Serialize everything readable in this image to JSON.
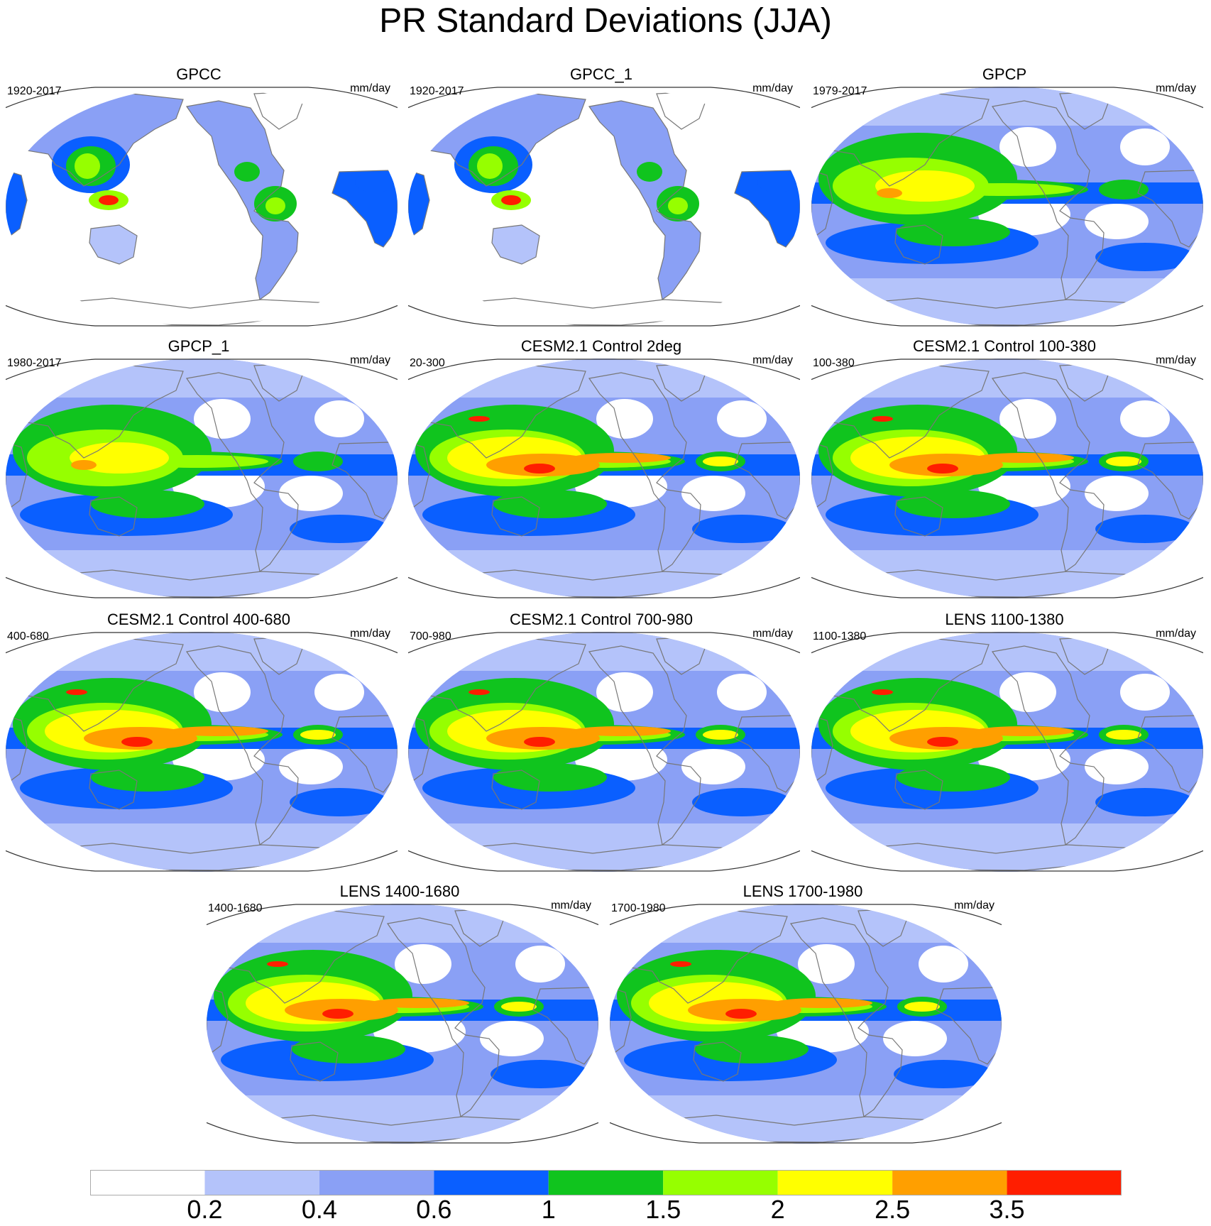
{
  "title": "PR Standard Deviations (JJA)",
  "units": "mm/day",
  "panels": [
    {
      "title": "GPCC",
      "period": "1920-2017",
      "kind": "obs_land"
    },
    {
      "title": "GPCC_1",
      "period": "1920-2017",
      "kind": "obs_land"
    },
    {
      "title": "GPCP",
      "period": "1979-2017",
      "kind": "obs_global"
    },
    {
      "title": "GPCP_1",
      "period": "1980-2017",
      "kind": "obs_global"
    },
    {
      "title": "CESM2.1 Control 2deg",
      "period": "20-300",
      "kind": "model"
    },
    {
      "title": "CESM2.1 Control 100-380",
      "period": "100-380",
      "kind": "model"
    },
    {
      "title": "CESM2.1 Control 400-680",
      "period": "400-680",
      "kind": "model"
    },
    {
      "title": "CESM2.1 Control 700-980",
      "period": "700-980",
      "kind": "model"
    },
    {
      "title": "LENS 1100-1380",
      "period": "1100-1380",
      "kind": "model"
    },
    {
      "title": "LENS 1400-1680",
      "period": "1400-1680",
      "kind": "model"
    },
    {
      "title": "LENS 1700-1980",
      "period": "1700-1980",
      "kind": "model"
    }
  ],
  "colorbar": {
    "labels": [
      "0.2",
      "0.4",
      "0.6",
      "1",
      "1.5",
      "2",
      "2.5",
      "3.5"
    ],
    "levels": [
      0.2,
      0.4,
      0.6,
      1,
      1.5,
      2,
      2.5,
      3.5
    ],
    "colors": [
      "#ffffff",
      "#b4c3fa",
      "#8aa0f5",
      "#0a5fff",
      "#10c41e",
      "#96ff00",
      "#ffff00",
      "#ff9f00",
      "#ff1e00"
    ]
  }
}
